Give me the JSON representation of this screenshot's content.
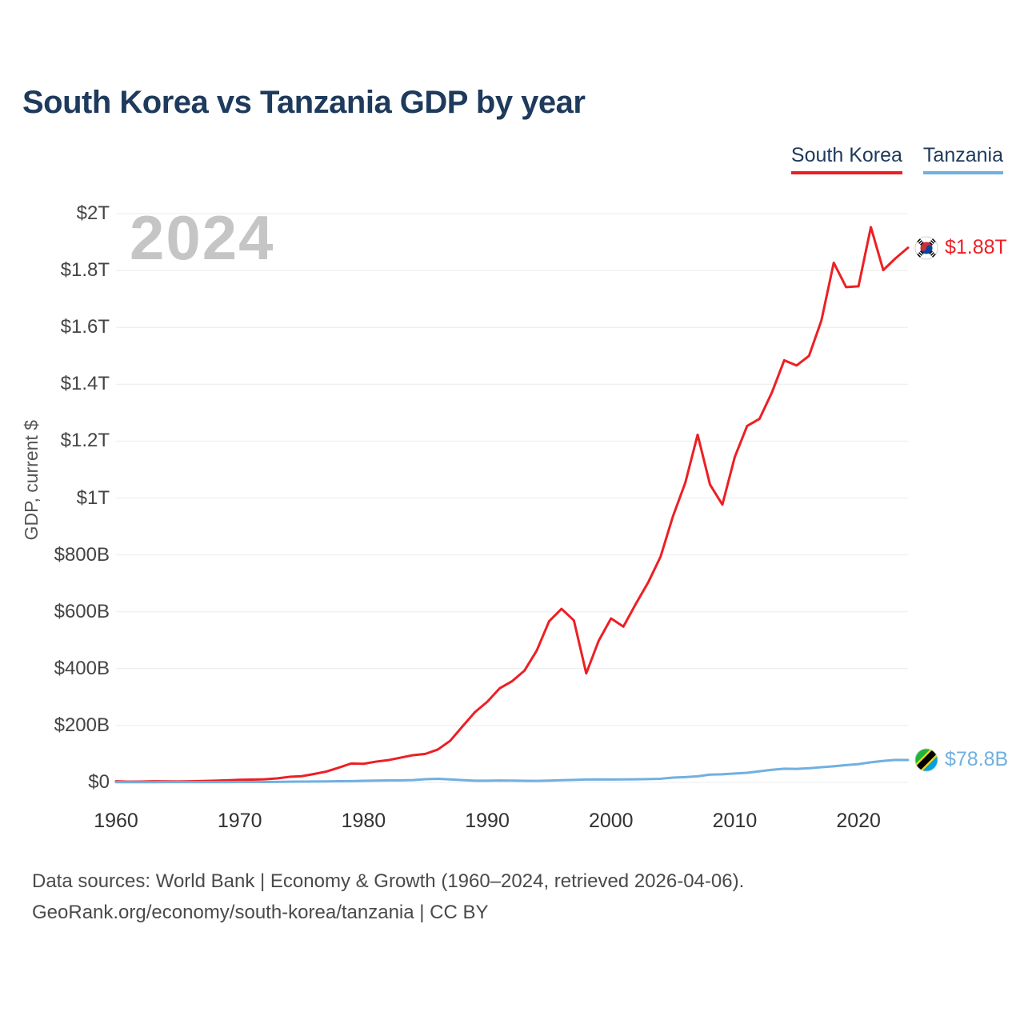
{
  "title": "South Korea vs Tanzania GDP by year",
  "watermark": "2024",
  "y_axis_title": "GDP, current $",
  "legend": [
    {
      "label": "South Korea",
      "color": "#ed1f24"
    },
    {
      "label": "Tanzania",
      "color": "#70b0e0"
    }
  ],
  "end_labels": [
    {
      "series": "South Korea",
      "value": "$1.88T",
      "icon": "flag-south-korea-icon"
    },
    {
      "series": "Tanzania",
      "value": "$78.8B",
      "icon": "flag-tanzania-icon"
    }
  ],
  "footer": {
    "line1": "Data sources: World Bank | Economy & Growth (1960–2024, retrieved 2026-04-06).",
    "line2": "GeoRank.org/economy/south-korea/tanzania | CC BY"
  },
  "chart_data": {
    "type": "line",
    "title": "South Korea vs Tanzania GDP by year",
    "xlabel": "",
    "ylabel": "GDP, current $",
    "y_unit": "billions of current US$",
    "xlim": [
      1960,
      2024
    ],
    "ylim": [
      0,
      2000
    ],
    "grid": "horizontal",
    "legend_position": "top-right",
    "x_ticks": [
      1960,
      1970,
      1980,
      1990,
      2000,
      2010,
      2020
    ],
    "y_ticks": [
      {
        "value": 0,
        "label": "$0"
      },
      {
        "value": 200,
        "label": "$200B"
      },
      {
        "value": 400,
        "label": "$400B"
      },
      {
        "value": 600,
        "label": "$600B"
      },
      {
        "value": 800,
        "label": "$800B"
      },
      {
        "value": 1000,
        "label": "$1T"
      },
      {
        "value": 1200,
        "label": "$1.2T"
      },
      {
        "value": 1400,
        "label": "$1.4T"
      },
      {
        "value": 1600,
        "label": "$1.6T"
      },
      {
        "value": 1800,
        "label": "$1.8T"
      },
      {
        "value": 2000,
        "label": "$2T"
      }
    ],
    "x": [
      1960,
      1961,
      1962,
      1963,
      1964,
      1965,
      1966,
      1967,
      1968,
      1969,
      1970,
      1971,
      1972,
      1973,
      1974,
      1975,
      1976,
      1977,
      1978,
      1979,
      1980,
      1981,
      1982,
      1983,
      1984,
      1985,
      1986,
      1987,
      1988,
      1989,
      1990,
      1991,
      1992,
      1993,
      1994,
      1995,
      1996,
      1997,
      1998,
      1999,
      2000,
      2001,
      2002,
      2003,
      2004,
      2005,
      2006,
      2007,
      2008,
      2009,
      2010,
      2011,
      2012,
      2013,
      2014,
      2015,
      2016,
      2017,
      2018,
      2019,
      2020,
      2021,
      2022,
      2023,
      2024
    ],
    "series": [
      {
        "name": "South Korea",
        "color": "#ed1f24",
        "end_label": "$1.88T",
        "values": [
          3.96,
          2.42,
          2.81,
          3.99,
          3.46,
          3.12,
          3.81,
          4.85,
          6.15,
          7.48,
          9.01,
          9.98,
          10.84,
          13.96,
          19.54,
          21.73,
          29.6,
          38.13,
          51.96,
          66.47,
          65.4,
          72.93,
          78.3,
          87.04,
          95.79,
          100.27,
          115.46,
          146.12,
          196.92,
          246.87,
          283.37,
          330.65,
          355.52,
          392.66,
          463.62,
          566.58,
          610.17,
          569.75,
          383.33,
          497.51,
          576.48,
          547.66,
          627.25,
          702.72,
          793.18,
          934.9,
          1053.22,
          1222.44,
          1047.34,
          976.77,
          1143.87,
          1253.22,
          1278.43,
          1370.8,
          1484.32,
          1466.04,
          1499.68,
          1623.9,
          1827.04,
          1741.42,
          1744.46,
          1952.36,
          1801.33,
          1843.2,
          1880.0
        ]
      },
      {
        "name": "Tanzania",
        "color": "#70b0e0",
        "end_label": "$78.8B",
        "values": [
          0.68,
          0.7,
          0.75,
          0.83,
          0.89,
          0.92,
          1.04,
          1.09,
          1.16,
          1.21,
          1.27,
          1.36,
          1.54,
          1.89,
          2.29,
          2.65,
          3.01,
          3.42,
          4.07,
          4.66,
          5.76,
          6.39,
          6.94,
          7.11,
          8.23,
          11.26,
          12.82,
          10.55,
          8.2,
          6.05,
          5.85,
          6.64,
          6.38,
          5.48,
          5.18,
          6.18,
          7.6,
          8.81,
          10.08,
          10.62,
          10.19,
          10.44,
          10.81,
          11.66,
          12.83,
          16.93,
          18.58,
          21.5,
          27.37,
          28.57,
          31.37,
          33.88,
          39.09,
          44.41,
          48.21,
          47.38,
          49.77,
          53.32,
          56.6,
          60.84,
          64.4,
          70.66,
          75.71,
          79.16,
          78.8
        ]
      }
    ]
  }
}
